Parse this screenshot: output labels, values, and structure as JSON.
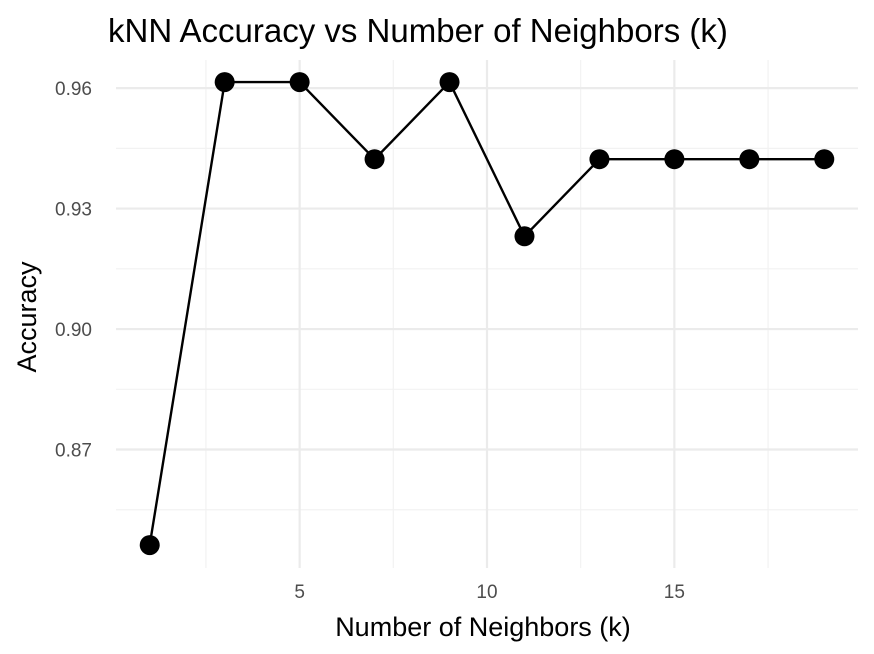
{
  "chart_data": {
    "type": "line",
    "title": "kNN Accuracy vs Number of Neighbors (k)",
    "xlabel": "Number of Neighbors (k)",
    "ylabel": "Accuracy",
    "x": [
      1,
      3,
      5,
      7,
      9,
      11,
      13,
      15,
      17,
      19
    ],
    "series": [
      {
        "name": "Accuracy",
        "values": [
          0.8462,
          0.9615,
          0.9615,
          0.9423,
          0.9615,
          0.9231,
          0.9423,
          0.9423,
          0.9423,
          0.9423
        ]
      }
    ],
    "xlim": [
      0.1,
      19.9
    ],
    "ylim": [
      0.8405,
      0.967
    ],
    "x_ticks": [
      5,
      10,
      15
    ],
    "x_tick_labels": [
      "5",
      "10",
      "15"
    ],
    "x_minor_ticks": [
      2.5,
      7.5,
      12.5,
      17.5
    ],
    "y_ticks": [
      0.87,
      0.9,
      0.93,
      0.96
    ],
    "y_tick_labels": [
      "0.87",
      "0.90",
      "0.93",
      "0.96"
    ],
    "y_minor_ticks": [
      0.855,
      0.885,
      0.915,
      0.945
    ],
    "grid": true,
    "legend": "none",
    "line_color": "#000000",
    "point_color": "#000000",
    "grid_color": "#ebebeb"
  }
}
